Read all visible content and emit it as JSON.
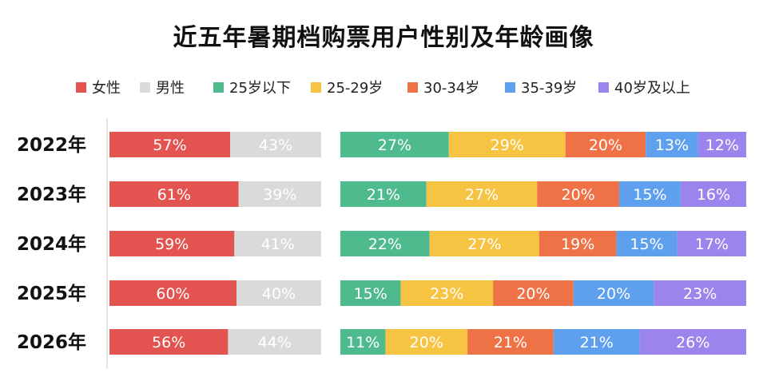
{
  "title": "近五年暑期档购票用户性别及年龄画像",
  "legend": [
    {
      "label": "女性",
      "color": "#e35450"
    },
    {
      "label": "男性",
      "color": "#dadada"
    },
    {
      "label": "25岁以下",
      "color": "#4fba8e"
    },
    {
      "label": "25-29岁",
      "color": "#f7c342"
    },
    {
      "label": "30-34岁",
      "color": "#ee7246"
    },
    {
      "label": "35-39岁",
      "color": "#5ea0ee"
    },
    {
      "label": "40岁及以上",
      "color": "#9b84ec"
    }
  ],
  "chart_data": {
    "type": "bar",
    "orientation": "horizontal",
    "stacked": true,
    "percent": true,
    "title": "近五年暑期档购票用户性别及年龄画像",
    "categories": [
      "2022年",
      "2023年",
      "2024年",
      "2025年",
      "2026年"
    ],
    "groups": [
      {
        "name": "gender",
        "series": [
          {
            "name": "女性",
            "color": "#e35450",
            "values": [
              57,
              61,
              59,
              60,
              56
            ],
            "labels": [
              "57%",
              "61%",
              "59%",
              "60%",
              "56%"
            ]
          },
          {
            "name": "男性",
            "color": "#dadada",
            "values": [
              43,
              39,
              41,
              40,
              44
            ],
            "labels": [
              "43%",
              "39%",
              "41%",
              "40%",
              "44%"
            ]
          }
        ]
      },
      {
        "name": "age",
        "series": [
          {
            "name": "25岁以下",
            "color": "#4fba8e",
            "values": [
              27,
              21,
              22,
              15,
              11
            ],
            "labels": [
              "27%",
              "21%",
              "22%",
              "15%",
              "11%"
            ]
          },
          {
            "name": "25-29岁",
            "color": "#f7c342",
            "values": [
              29,
              27,
              27,
              23,
              20
            ],
            "labels": [
              "29%",
              "27%",
              "27%",
              "23%",
              "20%"
            ]
          },
          {
            "name": "30-34岁",
            "color": "#ee7246",
            "values": [
              20,
              20,
              19,
              20,
              21
            ],
            "labels": [
              "20%",
              "20%",
              "19%",
              "20%",
              "21%"
            ]
          },
          {
            "name": "35-39岁",
            "color": "#5ea0ee",
            "values": [
              13,
              15,
              15,
              20,
              21
            ],
            "labels": [
              "13%",
              "15%",
              "15%",
              "20%",
              "21%"
            ]
          },
          {
            "name": "40岁及以上",
            "color": "#9b84ec",
            "values": [
              12,
              16,
              17,
              23,
              26
            ],
            "labels": [
              "12%",
              "16%",
              "17%",
              "23%",
              "26%"
            ]
          }
        ]
      }
    ],
    "legend_position": "top",
    "grid": false
  }
}
